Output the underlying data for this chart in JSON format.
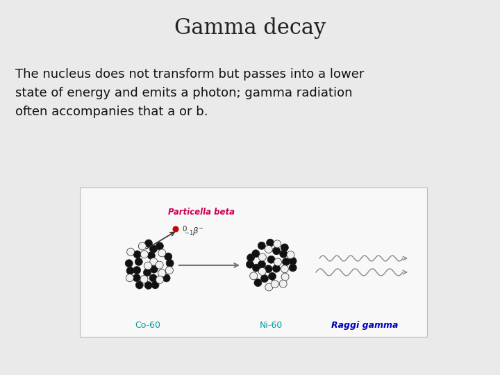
{
  "title": "Gamma decay",
  "title_fontsize": 22,
  "title_color": "#222222",
  "body_text": "The nucleus does not transform but passes into a lower\nstate of energy and emits a photon; gamma radiation\noften accompanies that a or b.",
  "body_fontsize": 13,
  "body_color": "#111111",
  "background_color": "#eaeaea",
  "image_box_color": "#f8f8f8",
  "image_box_edge_color": "#bbbbbb",
  "label_co": "Co-60",
  "label_ni": "Ni-60",
  "label_gamma": "Raggi gamma",
  "label_beta": "Particella beta",
  "label_beta_color": "#cc0055",
  "label_co_color": "#009999",
  "label_ni_color": "#009999",
  "label_gamma_color": "#0000bb",
  "figsize": [
    7.2,
    5.4
  ],
  "dpi": 100
}
